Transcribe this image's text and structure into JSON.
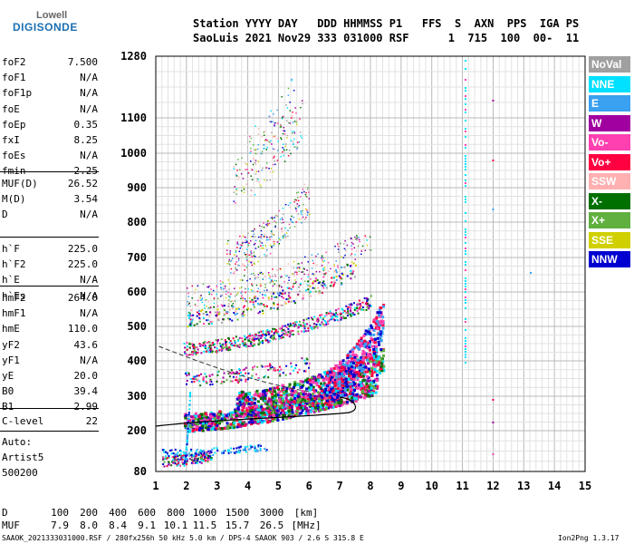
{
  "logo": {
    "line1": "Lowell",
    "line2": "DIGISONDE"
  },
  "header": {
    "line1": "Station YYYY DAY   DDD HHMMSS P1   FFS  S  AXN  PPS  IGA PS",
    "line2": "SaoLuis 2021 Nov29 333 031000 RSF      1  715  100  00-  11"
  },
  "params_groups": [
    [
      {
        "name": "foF2",
        "value": "7.500"
      },
      {
        "name": "foF1",
        "value": "N/A"
      },
      {
        "name": "foF1p",
        "value": "N/A"
      },
      {
        "name": "foE",
        "value": "N/A"
      },
      {
        "name": "foEp",
        "value": "0.35"
      },
      {
        "name": "fxI",
        "value": "8.25"
      },
      {
        "name": "foEs",
        "value": "N/A"
      },
      {
        "name": "fmin",
        "value": "2.25"
      }
    ],
    [
      {
        "name": "MUF(D)",
        "value": "26.52"
      },
      {
        "name": "M(D)",
        "value": "3.54"
      },
      {
        "name": "D",
        "value": "N/A"
      }
    ],
    [
      {
        "name": "h`F",
        "value": "225.0"
      },
      {
        "name": "h`F2",
        "value": "225.0"
      },
      {
        "name": "h`E",
        "value": "N/A"
      },
      {
        "name": "h`Es",
        "value": "N/A"
      }
    ],
    [
      {
        "name": "hmF2",
        "value": "264.0"
      },
      {
        "name": "hmF1",
        "value": "N/A"
      },
      {
        "name": "hmE",
        "value": "110.0"
      },
      {
        "name": "yF2",
        "value": "43.6"
      },
      {
        "name": "yF1",
        "value": "N/A"
      },
      {
        "name": "yE",
        "value": "20.0"
      },
      {
        "name": "B0",
        "value": "39.4"
      },
      {
        "name": "B1",
        "value": "2.99"
      }
    ],
    [
      {
        "name": "C-level",
        "value": "22"
      }
    ]
  ],
  "auto": {
    "line1": "Auto:",
    "line2": "Artist5",
    "line3": "500200"
  },
  "legend": [
    {
      "label": "NoVal",
      "color": "#a0a0a0"
    },
    {
      "label": "NNE",
      "color": "#00e0ff"
    },
    {
      "label": "E",
      "color": "#3aa0f0"
    },
    {
      "label": "W",
      "color": "#a000a0"
    },
    {
      "label": "Vo-",
      "color": "#ff40b0"
    },
    {
      "label": "Vo+",
      "color": "#ff0040"
    },
    {
      "label": "SSW",
      "color": "#ffb0b0"
    },
    {
      "label": "X-",
      "color": "#007000"
    },
    {
      "label": "X+",
      "color": "#60b040"
    },
    {
      "label": "SSE",
      "color": "#d0d000"
    },
    {
      "label": "NNW",
      "color": "#0000d0"
    }
  ],
  "chart_data": {
    "type": "scatter",
    "x_ticks": [
      "1",
      "2",
      "3",
      "4",
      "5",
      "6",
      "7",
      "8",
      "9",
      "10",
      "11",
      "12",
      "13",
      "14",
      "15"
    ],
    "y_ticks": [
      "80",
      "200",
      "300",
      "400",
      "500",
      "600",
      "700",
      "800",
      "900",
      "1000",
      "1100",
      "1280"
    ],
    "xlim": [
      1,
      15
    ],
    "ylim": [
      80,
      1280
    ]
  },
  "muf_table": {
    "d_label": "D",
    "d_values": [
      "100",
      "200",
      "400",
      "600",
      "800",
      "1000",
      "1500",
      "3000",
      "[km]"
    ],
    "muf_label": "MUF",
    "muf_values": [
      "7.9",
      "8.0",
      "8.4",
      "9.1",
      "10.1",
      "11.5",
      "15.7",
      "26.5",
      "[MHz]"
    ]
  },
  "footer": {
    "left": "SAAOK_2021333031000.RSF / 280fx256h 50 kHz 5.0 km / DPS-4 SAAOK 903 / 2.6 S 315.8 E",
    "right": "Ion2Png 1.3.17"
  }
}
